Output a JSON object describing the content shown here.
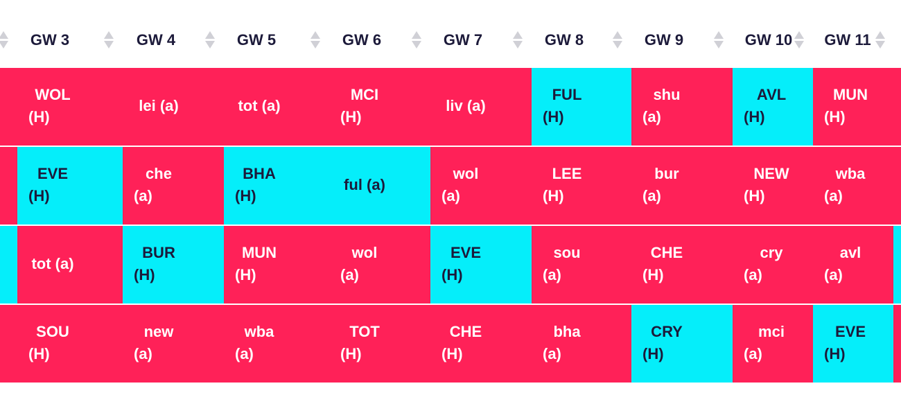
{
  "headers": [
    "GW 3",
    "GW 4",
    "GW 5",
    "GW 6",
    "GW 7",
    "GW 8",
    "GW 9",
    "GW 10",
    "GW 11"
  ],
  "colors": {
    "difficult": "#ff2158",
    "easy": "#05eefa",
    "text_dark": "#1c1a3a",
    "text_light": "#ffffff",
    "sort_icon": "#d0d0d6"
  },
  "icons": {
    "sort": "sort-arrows-icon"
  },
  "rows": [
    {
      "cells": [
        {
          "team": "WOL",
          "venue": "(H)",
          "difficulty": "hard",
          "split": true
        },
        {
          "team": "lei (a)",
          "difficulty": "hard",
          "split": false
        },
        {
          "team": "tot (a)",
          "difficulty": "hard",
          "split": false
        },
        {
          "team": "MCI",
          "venue": "(H)",
          "difficulty": "hard",
          "split": true
        },
        {
          "team": "liv (a)",
          "difficulty": "hard",
          "split": false
        },
        {
          "team": "FUL",
          "venue": "(H)",
          "difficulty": "easy",
          "split": true
        },
        {
          "team": "shu",
          "venue": "(a)",
          "difficulty": "hard",
          "split": true
        },
        {
          "team": "AVL",
          "venue": "(H)",
          "difficulty": "easy",
          "split": true
        },
        {
          "team": "MUN",
          "venue": "(H)",
          "difficulty": "hard",
          "split": true
        }
      ]
    },
    {
      "cells": [
        {
          "team": "EVE",
          "venue": "(H)",
          "difficulty": "easy",
          "split": true
        },
        {
          "team": "che",
          "venue": "(a)",
          "difficulty": "hard",
          "split": true
        },
        {
          "team": "BHA",
          "venue": "(H)",
          "difficulty": "easy",
          "split": true
        },
        {
          "team": "ful (a)",
          "difficulty": "easy",
          "split": false
        },
        {
          "team": "wol",
          "venue": "(a)",
          "difficulty": "hard",
          "split": true
        },
        {
          "team": "LEE",
          "venue": "(H)",
          "difficulty": "hard",
          "split": true
        },
        {
          "team": "bur",
          "venue": "(a)",
          "difficulty": "hard",
          "split": true
        },
        {
          "team": "NEW",
          "venue": "(H)",
          "difficulty": "hard",
          "split": true
        },
        {
          "team": "wba",
          "venue": "(a)",
          "difficulty": "hard",
          "split": true
        }
      ]
    },
    {
      "cells": [
        {
          "team": "tot (a)",
          "difficulty": "hard",
          "split": false
        },
        {
          "team": "BUR",
          "venue": "(H)",
          "difficulty": "easy",
          "split": true
        },
        {
          "team": "MUN",
          "venue": "(H)",
          "difficulty": "hard",
          "split": true
        },
        {
          "team": "wol",
          "venue": "(a)",
          "difficulty": "hard",
          "split": true
        },
        {
          "team": "EVE",
          "venue": "(H)",
          "difficulty": "easy",
          "split": true
        },
        {
          "team": "sou",
          "venue": "(a)",
          "difficulty": "hard",
          "split": true
        },
        {
          "team": "CHE",
          "venue": "(H)",
          "difficulty": "hard",
          "split": true
        },
        {
          "team": "cry",
          "venue": "(a)",
          "difficulty": "hard",
          "split": true
        },
        {
          "team": "avl",
          "venue": "(a)",
          "difficulty": "hard",
          "split": true
        }
      ]
    },
    {
      "cells": [
        {
          "team": "SOU",
          "venue": "(H)",
          "difficulty": "hard",
          "split": true
        },
        {
          "team": "new",
          "venue": "(a)",
          "difficulty": "hard",
          "split": true
        },
        {
          "team": "wba",
          "venue": "(a)",
          "difficulty": "hard",
          "split": true
        },
        {
          "team": "TOT",
          "venue": "(H)",
          "difficulty": "hard",
          "split": true
        },
        {
          "team": "CHE",
          "venue": "(H)",
          "difficulty": "hard",
          "split": true
        },
        {
          "team": "bha",
          "venue": "(a)",
          "difficulty": "hard",
          "split": true
        },
        {
          "team": "CRY",
          "venue": "(H)",
          "difficulty": "easy",
          "split": true
        },
        {
          "team": "mci",
          "venue": "(a)",
          "difficulty": "hard",
          "split": true
        },
        {
          "team": "EVE",
          "venue": "(H)",
          "difficulty": "easy",
          "split": true
        }
      ]
    }
  ]
}
